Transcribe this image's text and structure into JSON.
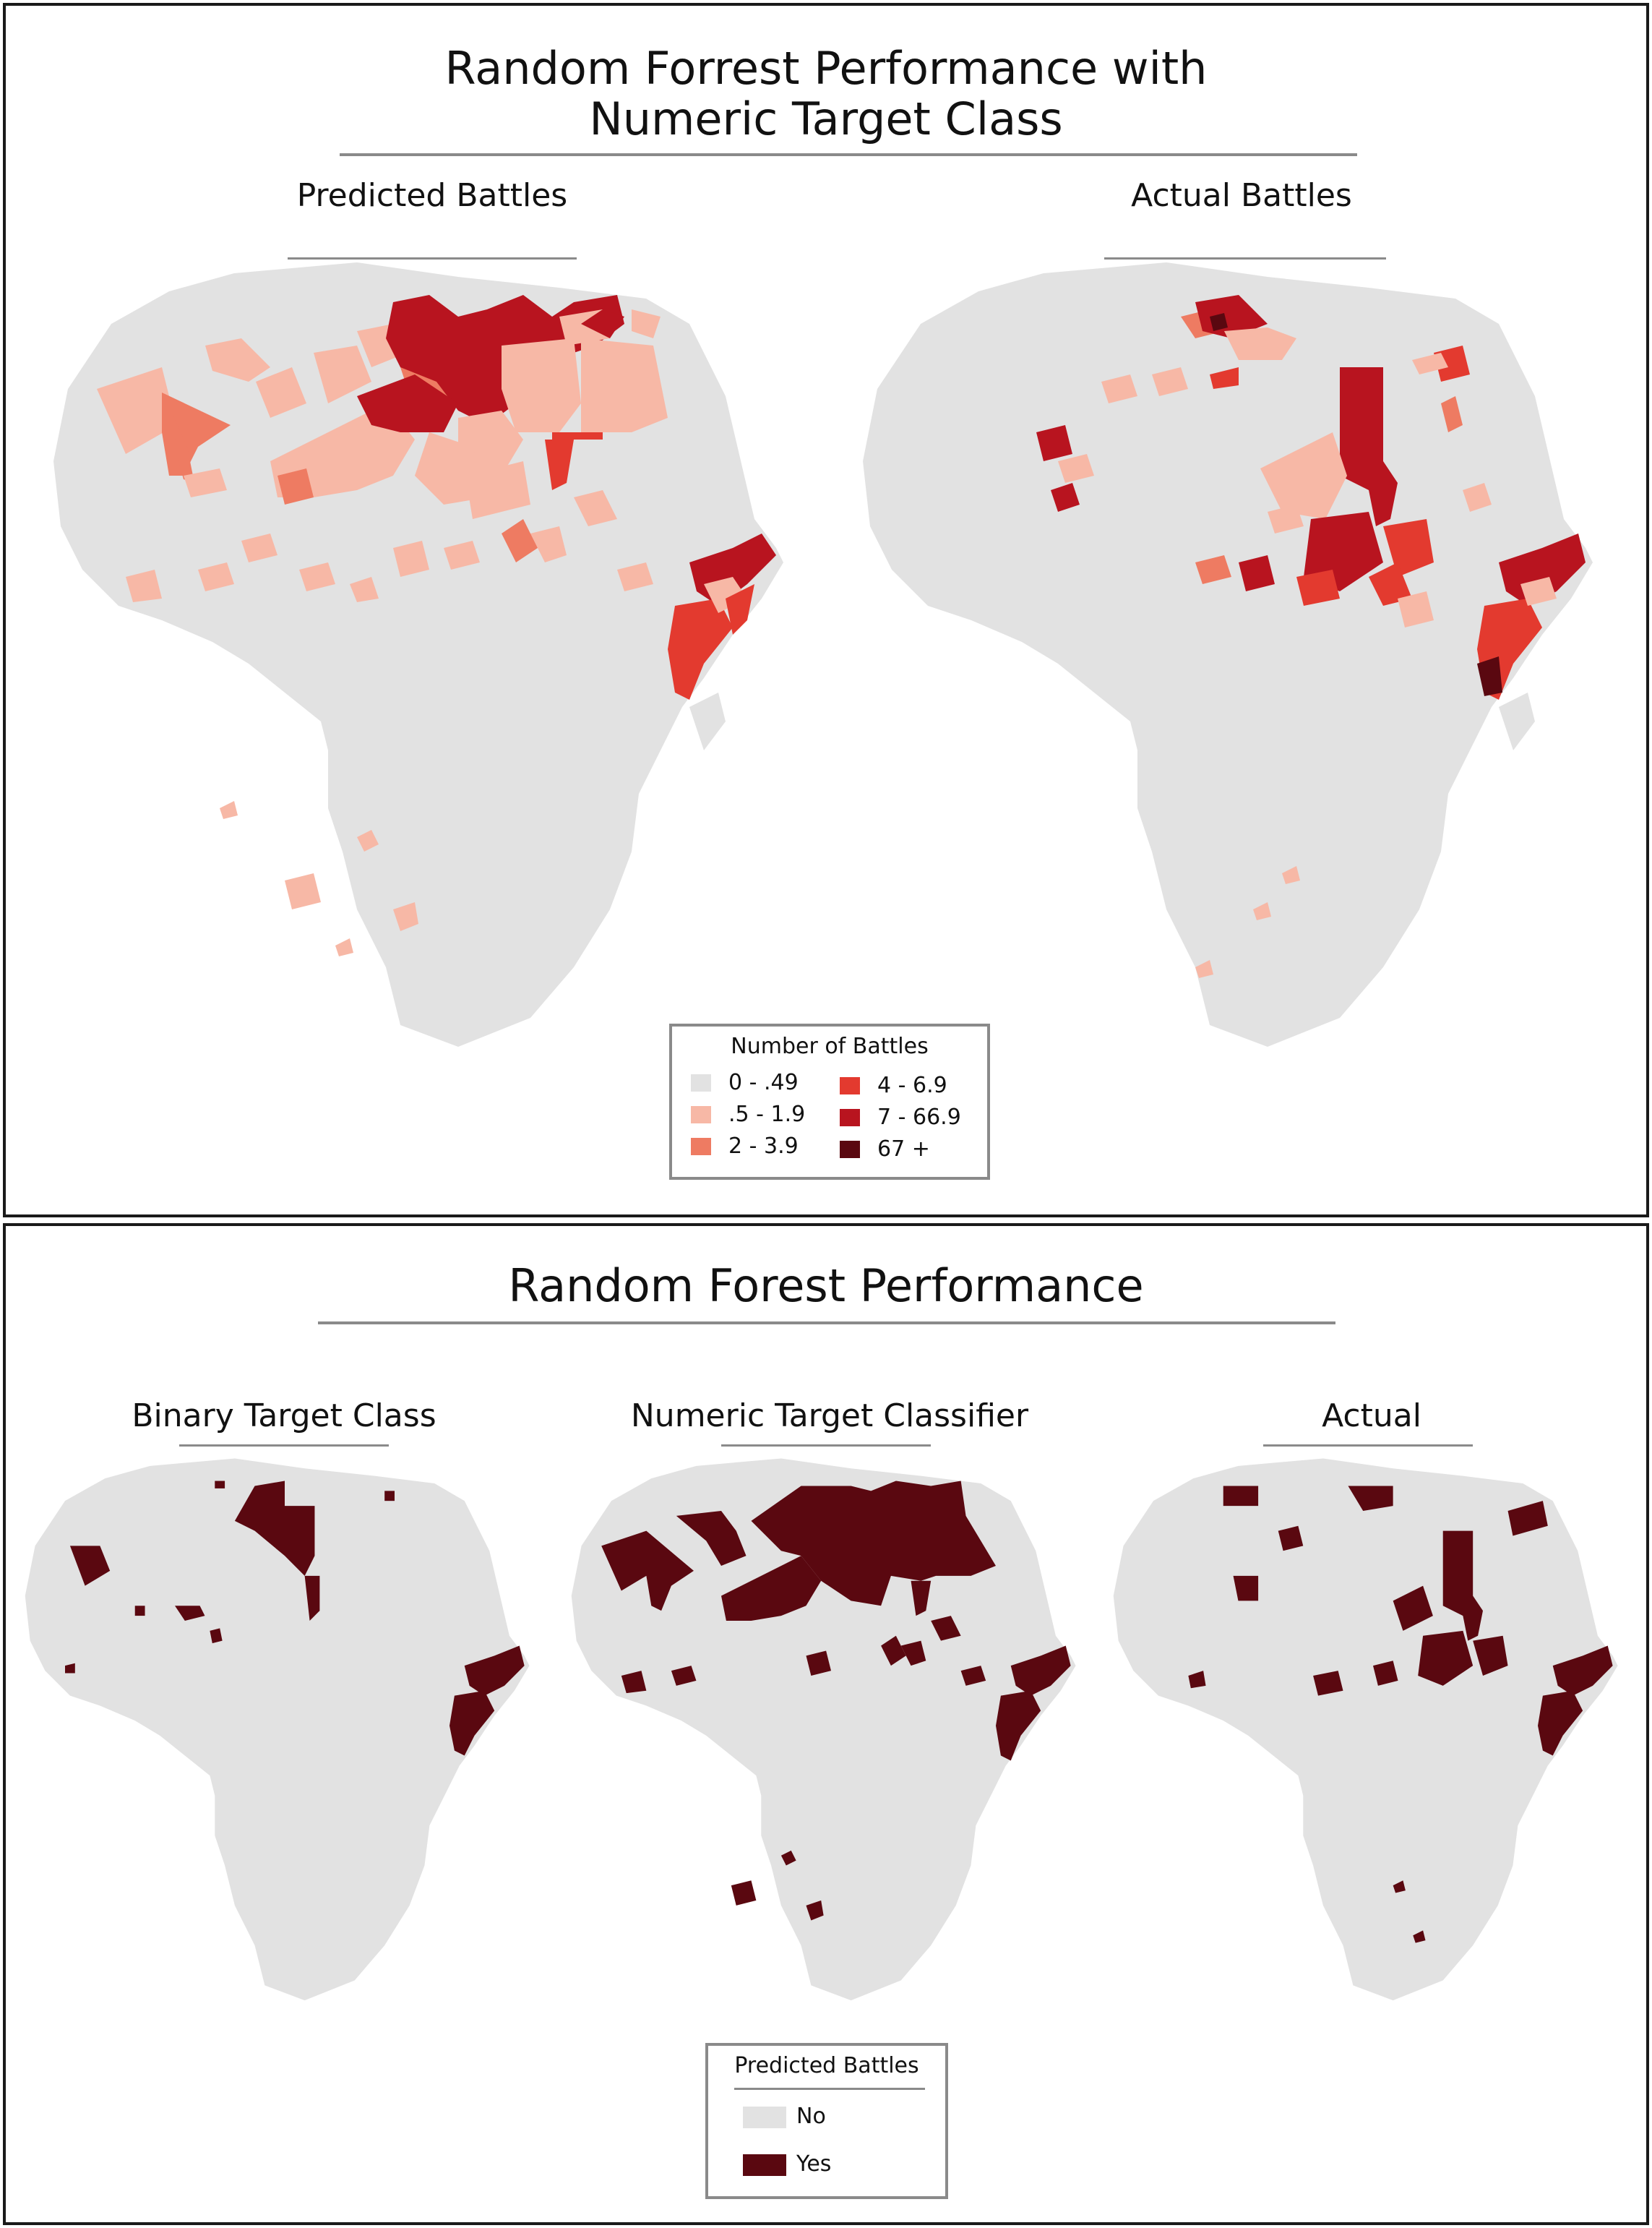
{
  "top_panel": {
    "title_line1": "Random Forrest Performance with",
    "title_line2": "Numeric Target Class",
    "maps": [
      {
        "title": "Predicted Battles"
      },
      {
        "title": "Actual Battles"
      }
    ],
    "legend": {
      "title": "Number of Battles",
      "items": [
        {
          "label": "0 - .49",
          "color": "#e2e2e2"
        },
        {
          "label": ".5 - 1.9",
          "color": "#f7b8a6"
        },
        {
          "label": "2 - 3.9",
          "color": "#ee7b62"
        },
        {
          "label": "4 - 6.9",
          "color": "#e33a2f"
        },
        {
          "label": "7 - 66.9",
          "color": "#b8141f"
        },
        {
          "label": "67 +",
          "color": "#5a0810"
        }
      ]
    }
  },
  "bottom_panel": {
    "title": "Random Forest Performance",
    "maps": [
      {
        "title": "Binary Target Class"
      },
      {
        "title": "Numeric Target Classifier"
      },
      {
        "title": "Actual"
      }
    ],
    "legend": {
      "title": "Predicted Battles",
      "items": [
        {
          "label": "No",
          "color": "#e2e2e2"
        },
        {
          "label": "Yes",
          "color": "#5a0810"
        }
      ]
    }
  }
}
